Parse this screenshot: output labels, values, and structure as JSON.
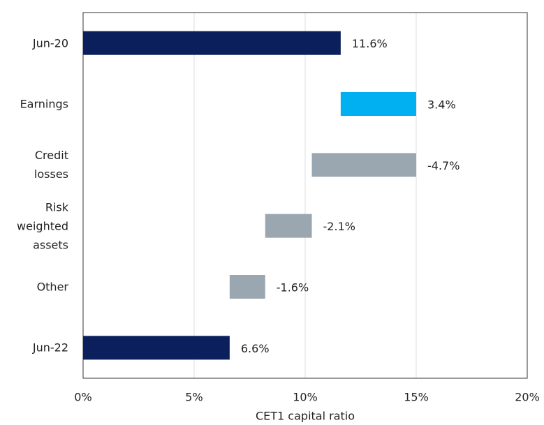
{
  "chart_data": {
    "type": "waterfall",
    "orientation": "horizontal",
    "categories": [
      "Jun-20",
      "Earnings",
      "Credit losses",
      "Risk weighted assets",
      "Other",
      "Jun-22"
    ],
    "values": [
      11.6,
      3.4,
      -4.7,
      -2.1,
      -1.6,
      6.6
    ],
    "value_labels": [
      "11.6%",
      "3.4%",
      "-4.7%",
      "-2.1%",
      "-1.6%",
      "6.6%"
    ],
    "colors": [
      "#0a1f5c",
      "#00b0f0",
      "#9aa7b1",
      "#9aa7b1",
      "#9aa7b1",
      "#0a1f5c"
    ],
    "xlabel": "CET1 capital ratio",
    "xlim": [
      0,
      20
    ],
    "xticks": [
      {
        "value": 0,
        "label": "0%"
      },
      {
        "value": 5,
        "label": "5%"
      },
      {
        "value": 10,
        "label": "10%"
      },
      {
        "value": 15,
        "label": "15%"
      },
      {
        "value": 20,
        "label": "20%"
      }
    ],
    "grid": true
  }
}
